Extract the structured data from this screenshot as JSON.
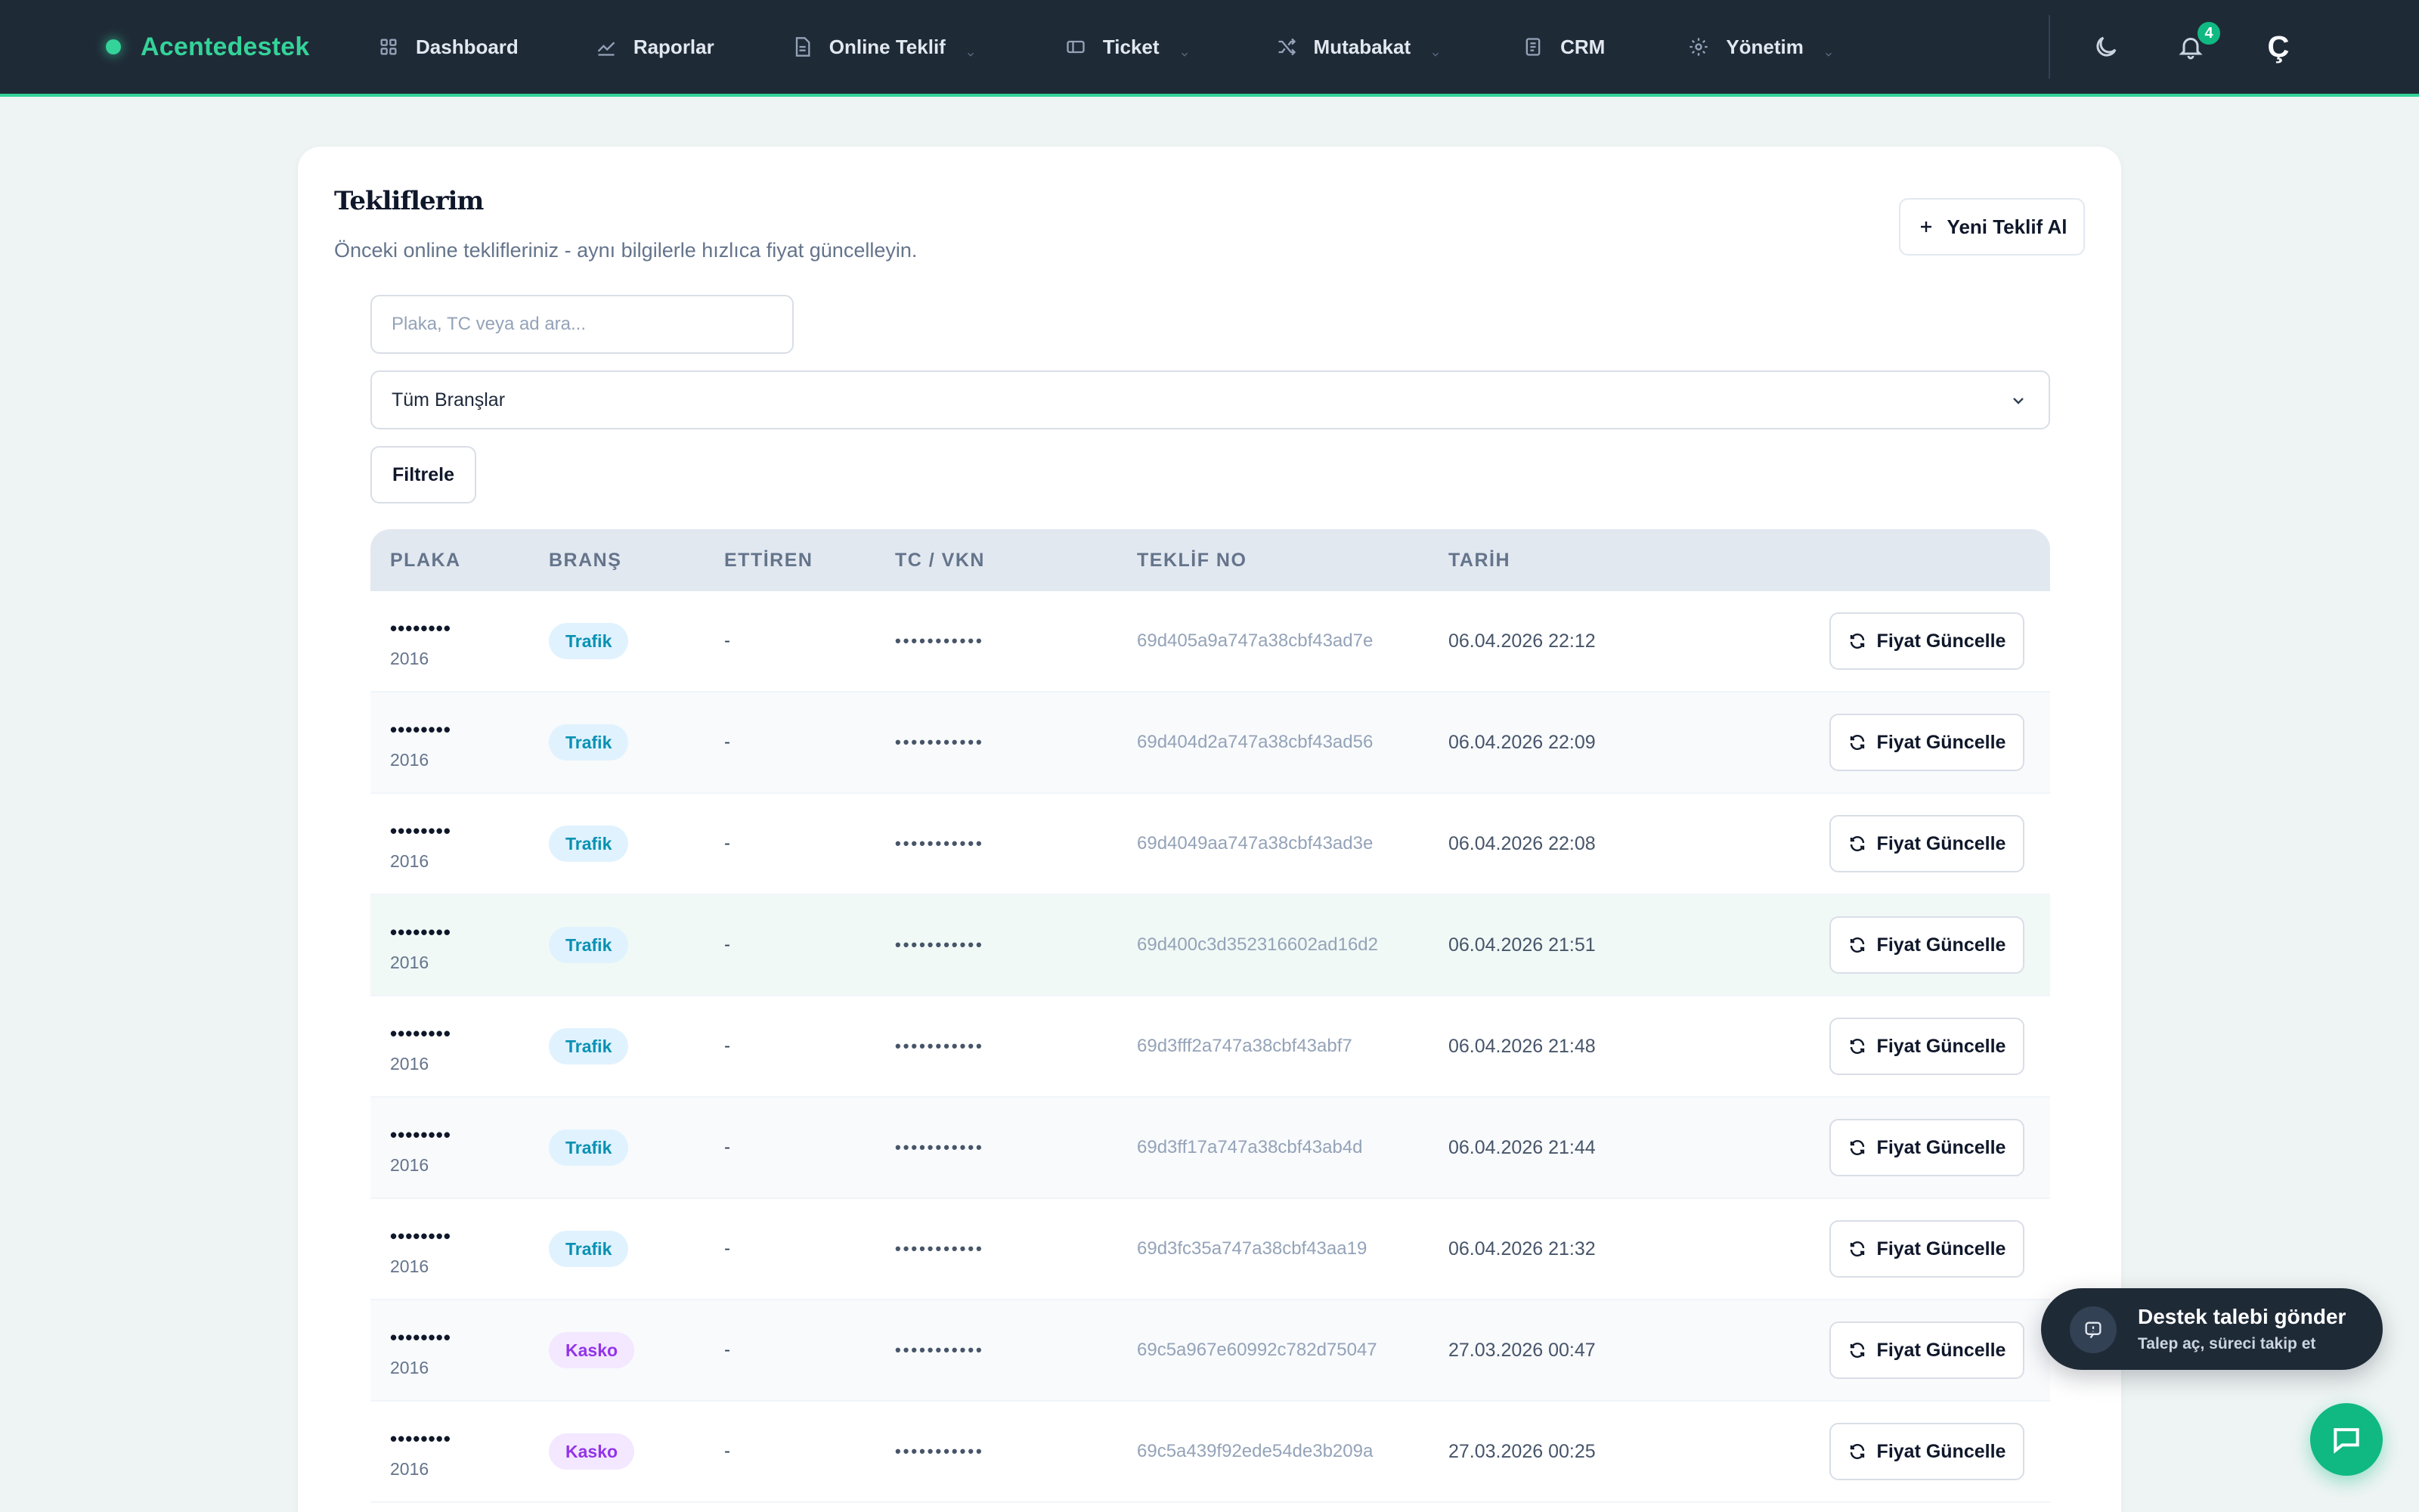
{
  "brand": {
    "name": "Acentedestek",
    "accent": "#34d399"
  },
  "nav": {
    "items": [
      {
        "label": "Dashboard",
        "icon": "dashboard-icon",
        "dropdown": false
      },
      {
        "label": "Raporlar",
        "icon": "chart-icon",
        "dropdown": false
      },
      {
        "label": "Online Teklif",
        "icon": "document-icon",
        "dropdown": true
      },
      {
        "label": "Ticket",
        "icon": "ticket-icon",
        "dropdown": true
      },
      {
        "label": "Mutabakat",
        "icon": "shuffle-icon",
        "dropdown": true
      },
      {
        "label": "CRM",
        "icon": "crm-icon",
        "dropdown": false
      },
      {
        "label": "Yönetim",
        "icon": "gear-icon",
        "dropdown": true
      }
    ],
    "notification_count": "4",
    "avatar_letter": "Ç"
  },
  "page": {
    "title": "Tekliflerim",
    "subtitle": "Önceki online teklifleriniz - aynı bilgilerle hızlıca fiyat güncelleyin.",
    "new_quote_label": "Yeni Teklif Al"
  },
  "filters": {
    "search_placeholder": "Plaka, TC veya ad ara...",
    "search_value": "",
    "branch_selected": "Tüm Branşlar",
    "filter_label": "Filtrele"
  },
  "table": {
    "columns": [
      "PLAKA",
      "BRANŞ",
      "ETTİREN",
      "TC / VKN",
      "TEKLİF NO",
      "TARİH"
    ],
    "action_label": "Fiyat Güncelle",
    "rows": [
      {
        "plate": "••••••••",
        "year": "2016",
        "branch": "Trafik",
        "insured": "-",
        "tc": "•••••••••••",
        "quote_no": "69d405a9a747a38cbf43ad7e",
        "date": "06.04.2026 22:12"
      },
      {
        "plate": "••••••••",
        "year": "2016",
        "branch": "Trafik",
        "insured": "-",
        "tc": "•••••••••••",
        "quote_no": "69d404d2a747a38cbf43ad56",
        "date": "06.04.2026 22:09"
      },
      {
        "plate": "••••••••",
        "year": "2016",
        "branch": "Trafik",
        "insured": "-",
        "tc": "•••••••••••",
        "quote_no": "69d4049aa747a38cbf43ad3e",
        "date": "06.04.2026 22:08"
      },
      {
        "plate": "••••••••",
        "year": "2016",
        "branch": "Trafik",
        "insured": "-",
        "tc": "•••••••••••",
        "quote_no": "69d400c3d352316602ad16d2",
        "date": "06.04.2026 21:51"
      },
      {
        "plate": "••••••••",
        "year": "2016",
        "branch": "Trafik",
        "insured": "-",
        "tc": "•••••••••••",
        "quote_no": "69d3fff2a747a38cbf43abf7",
        "date": "06.04.2026 21:48"
      },
      {
        "plate": "••••••••",
        "year": "2016",
        "branch": "Trafik",
        "insured": "-",
        "tc": "•••••••••••",
        "quote_no": "69d3ff17a747a38cbf43ab4d",
        "date": "06.04.2026 21:44"
      },
      {
        "plate": "••••••••",
        "year": "2016",
        "branch": "Trafik",
        "insured": "-",
        "tc": "•••••••••••",
        "quote_no": "69d3fc35a747a38cbf43aa19",
        "date": "06.04.2026 21:32"
      },
      {
        "plate": "••••••••",
        "year": "2016",
        "branch": "Kasko",
        "insured": "-",
        "tc": "•••••••••••",
        "quote_no": "69c5a967e60992c782d75047",
        "date": "27.03.2026 00:47"
      },
      {
        "plate": "••••••••",
        "year": "2016",
        "branch": "Kasko",
        "insured": "-",
        "tc": "•••••••••••",
        "quote_no": "69c5a439f92ede54de3b209a",
        "date": "27.03.2026 00:25"
      }
    ]
  },
  "support": {
    "title": "Destek talebi gönder",
    "subtitle": "Talep aç, süreci takip et"
  }
}
